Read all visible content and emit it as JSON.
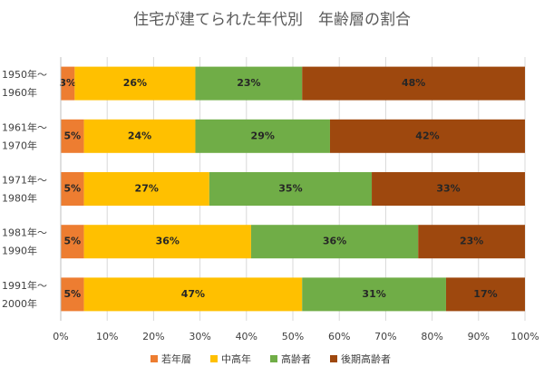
{
  "chart_data": {
    "type": "stacked-bar-horizontal",
    "title": "住宅が建てられた年代別　年齢層の割合",
    "categories": [
      "1950年～\n1960年",
      "1961年～\n1970年",
      "1971年～\n1980年",
      "1981年～\n1990年",
      "1991年～\n2000年"
    ],
    "series": [
      {
        "name": "若年層",
        "color": "#ed7d31",
        "values": [
          3,
          5,
          5,
          5,
          5
        ],
        "value_labels": [
          "3%",
          "5%",
          "5%",
          "5%",
          "5%"
        ]
      },
      {
        "name": "中高年",
        "color": "#ffc000",
        "values": [
          26,
          24,
          27,
          36,
          47
        ],
        "value_labels": [
          "26%",
          "24%",
          "27%",
          "36%",
          "47%"
        ]
      },
      {
        "name": "高齢者",
        "color": "#70ad47",
        "values": [
          23,
          29,
          35,
          36,
          31
        ],
        "value_labels": [
          "23%",
          "29%",
          "35%",
          "36%",
          "31%"
        ]
      },
      {
        "name": "後期高齢者",
        "color": "#9e480e",
        "values": [
          48,
          42,
          33,
          23,
          17
        ],
        "value_labels": [
          "48%",
          "42%",
          "33%",
          "23%",
          "17%"
        ]
      }
    ],
    "xlim": [
      0,
      100
    ],
    "xticks": [
      {
        "value": 0,
        "label": "0%"
      },
      {
        "value": 10,
        "label": "10%"
      },
      {
        "value": 20,
        "label": "20%"
      },
      {
        "value": 30,
        "label": "30%"
      },
      {
        "value": 40,
        "label": "40%"
      },
      {
        "value": 50,
        "label": "50%"
      },
      {
        "value": 60,
        "label": "60%"
      },
      {
        "value": 70,
        "label": "70%"
      },
      {
        "value": 80,
        "label": "80%"
      },
      {
        "value": 90,
        "label": "90%"
      },
      {
        "value": 100,
        "label": "100%"
      }
    ],
    "grid": true,
    "legend": "bottom"
  }
}
